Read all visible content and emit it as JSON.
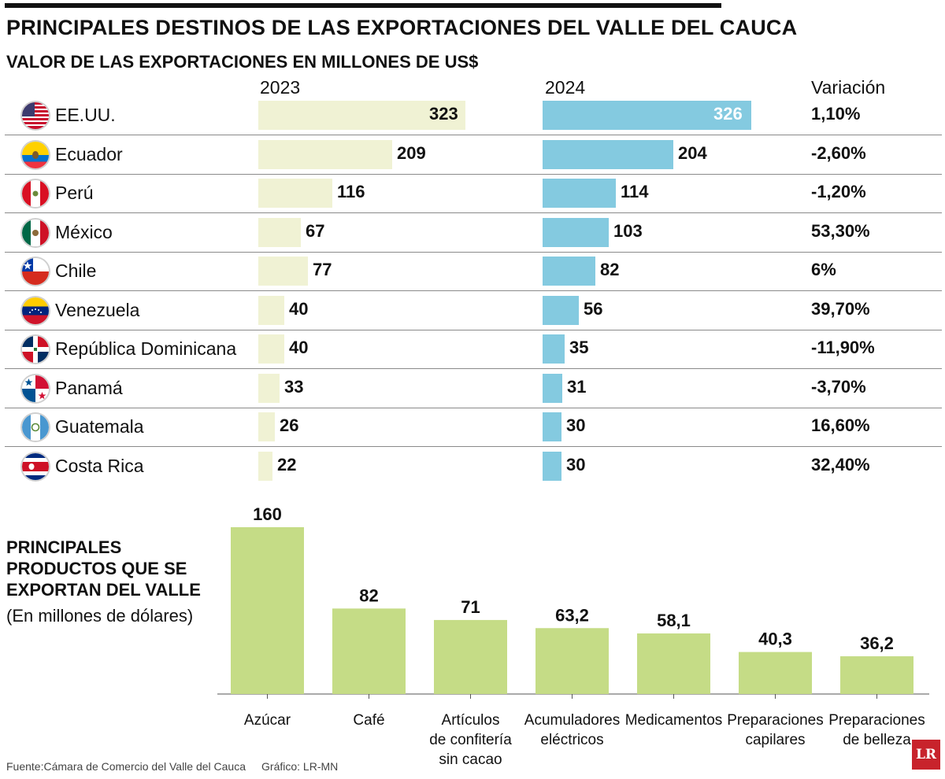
{
  "title": "PRINCIPALES DESTINOS DE LAS EXPORTACIONES DEL VALLE DEL CAUCA",
  "subtitle": "VALOR DE LAS EXPORTACIONES EN MILLONES DE US$",
  "columns": {
    "y2023": "2023",
    "y2024": "2024",
    "variation": "Variación"
  },
  "countries": [
    {
      "name": "EE.UU.",
      "flag": "usa-flag-icon",
      "v2023": 323,
      "v2024": 326,
      "variation": "1,10%"
    },
    {
      "name": "Ecuador",
      "flag": "ecuador-flag-icon",
      "v2023": 209,
      "v2024": 204,
      "variation": "-2,60%"
    },
    {
      "name": "Perú",
      "flag": "peru-flag-icon",
      "v2023": 116,
      "v2024": 114,
      "variation": "-1,20%"
    },
    {
      "name": "México",
      "flag": "mexico-flag-icon",
      "v2023": 67,
      "v2024": 103,
      "variation": "53,30%"
    },
    {
      "name": "Chile",
      "flag": "chile-flag-icon",
      "v2023": 77,
      "v2024": 82,
      "variation": "6%"
    },
    {
      "name": "Venezuela",
      "flag": "venezuela-flag-icon",
      "v2023": 40,
      "v2024": 56,
      "variation": "39,70%"
    },
    {
      "name": "República Dominicana",
      "flag": "dominican-republic-flag-icon",
      "v2023": 40,
      "v2024": 35,
      "variation": "-11,90%"
    },
    {
      "name": "Panamá",
      "flag": "panama-flag-icon",
      "v2023": 33,
      "v2024": 31,
      "variation": "-3,70%"
    },
    {
      "name": "Guatemala",
      "flag": "guatemala-flag-icon",
      "v2023": 26,
      "v2024": 30,
      "variation": "16,60%"
    },
    {
      "name": "Costa Rica",
      "flag": "costa-rica-flag-icon",
      "v2023": 22,
      "v2024": 30,
      "variation": "32,40%"
    }
  ],
  "colors": {
    "bar2023": "#f0f2d4",
    "bar2024": "#84cae0",
    "productBar": "#c5dc86"
  },
  "products_section": {
    "title_lines": [
      "PRINCIPALES",
      "PRODUCTOS QUE SE",
      "EXPORTAN DEL VALLE"
    ],
    "note": "(En millones de dólares)"
  },
  "chart_data": [
    {
      "type": "bar",
      "orientation": "horizontal",
      "title": "PRINCIPALES DESTINOS DE LAS EXPORTACIONES DEL VALLE DEL CAUCA",
      "subtitle": "VALOR DE LAS EXPORTACIONES EN MILLONES DE US$",
      "categories": [
        "EE.UU.",
        "Ecuador",
        "Perú",
        "México",
        "Chile",
        "Venezuela",
        "República Dominicana",
        "Panamá",
        "Guatemala",
        "Costa Rica"
      ],
      "series": [
        {
          "name": "2023",
          "values": [
            323,
            209,
            116,
            67,
            77,
            40,
            40,
            33,
            26,
            22
          ]
        },
        {
          "name": "2024",
          "values": [
            326,
            204,
            114,
            103,
            82,
            56,
            35,
            31,
            30,
            30
          ]
        }
      ],
      "xlim": [
        0,
        330
      ]
    },
    {
      "type": "bar",
      "title": "PRINCIPALES PRODUCTOS QUE SE EXPORTAN DEL VALLE",
      "ylabel": "(En millones de dólares)",
      "categories": [
        [
          "Azúcar"
        ],
        [
          "Café"
        ],
        [
          "Artículos",
          "de confitería",
          "sin cacao"
        ],
        [
          "Acumuladores",
          "eléctricos"
        ],
        [
          "Medicamentos"
        ],
        [
          "Preparaciones",
          "capilares"
        ],
        [
          "Preparaciones",
          "de belleza"
        ]
      ],
      "values": [
        160,
        82,
        71,
        63.2,
        58.1,
        40.3,
        36.2
      ],
      "value_labels": [
        "160",
        "82",
        "71",
        "63,2",
        "58,1",
        "40,3",
        "36,2"
      ],
      "ylim": [
        0,
        160
      ]
    }
  ],
  "footer": {
    "source": "Fuente:Cámara de Comercio del Valle del Cauca",
    "credit": "Gráfico: LR-MN"
  },
  "logo": "LR"
}
